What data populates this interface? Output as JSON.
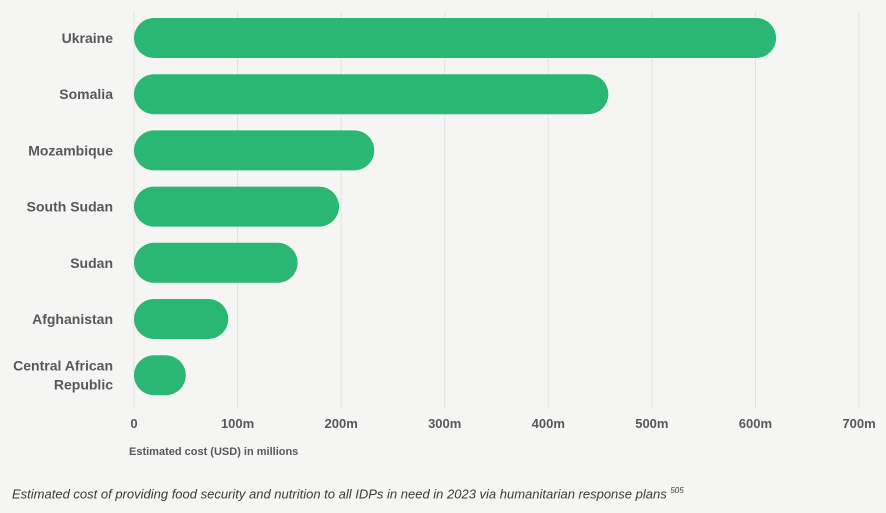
{
  "chart_data": {
    "type": "bar",
    "orientation": "horizontal",
    "categories": [
      "Ukraine",
      "Somalia",
      "Mozambique",
      "South Sudan",
      "Sudan",
      "Afghanistan",
      "Central African Republic"
    ],
    "category_lines": [
      [
        "Ukraine"
      ],
      [
        "Somalia"
      ],
      [
        "Mozambique"
      ],
      [
        "South Sudan"
      ],
      [
        "Sudan"
      ],
      [
        "Afghanistan"
      ],
      [
        "Central African",
        "Republic"
      ]
    ],
    "values": [
      620,
      458,
      232,
      198,
      158,
      91,
      50
    ],
    "xlim": [
      0,
      700
    ],
    "xticks": [
      0,
      100,
      200,
      300,
      400,
      500,
      600,
      700
    ],
    "xtick_labels": [
      "0",
      "100m",
      "200m",
      "300m",
      "400m",
      "500m",
      "600m",
      "700m"
    ],
    "xlabel": "Estimated cost (USD) in millions",
    "grid": "vertical",
    "bar_color": "#2ab673"
  },
  "caption": {
    "text": "Estimated cost of providing food security and nutrition to all IDPs in need in 2023 via humanitarian response plans",
    "footnote": "505"
  }
}
